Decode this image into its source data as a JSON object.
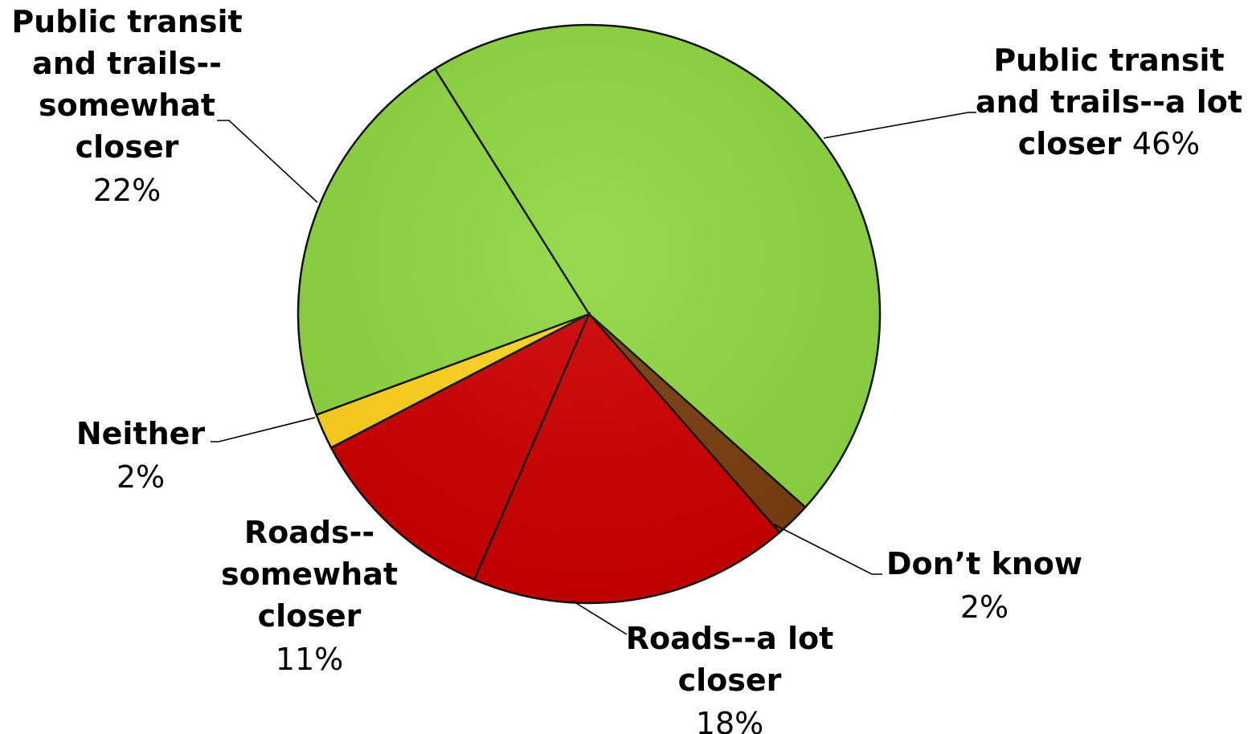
{
  "chart_data": {
    "type": "pie",
    "title": "",
    "slices": [
      {
        "label_lines": [
          "Public transit",
          "and trails--a lot",
          "closer"
        ],
        "pct_label": "46%",
        "value": 46,
        "color": "#8fd641"
      },
      {
        "label_lines": [
          "Don’t know"
        ],
        "pct_label": "2%",
        "value": 2,
        "color": "#7a3e10"
      },
      {
        "label_lines": [
          "Roads--a lot",
          "closer"
        ],
        "pct_label": "18%",
        "value": 18,
        "color": "#cc0000"
      },
      {
        "label_lines": [
          "Roads--",
          "somewhat",
          "closer"
        ],
        "pct_label": "11%",
        "value": 11,
        "color": "#cc0000"
      },
      {
        "label_lines": [
          "Neither"
        ],
        "pct_label": "2%",
        "value": 2,
        "color": "#ffd21f"
      },
      {
        "label_lines": [
          "Public transit",
          "and trails--",
          "somewhat",
          "closer"
        ],
        "pct_label": "22%",
        "value": 22,
        "color": "#8fd641"
      }
    ]
  }
}
